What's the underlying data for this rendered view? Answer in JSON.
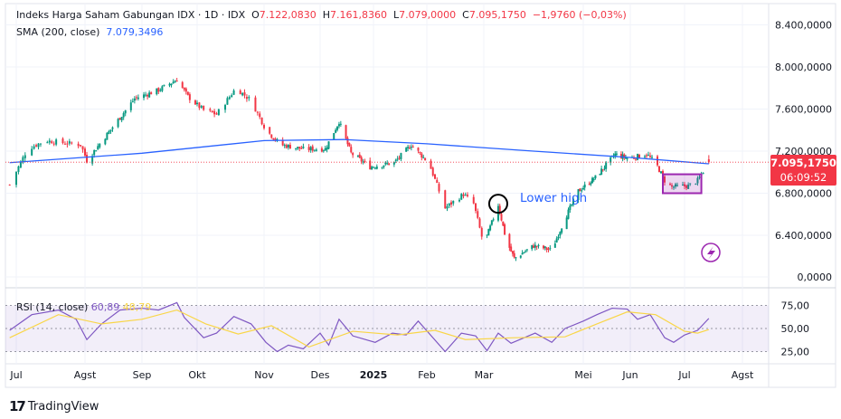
{
  "header": {
    "symbol": "Indeks Harga Saham Gabungan IDX · 1D · IDX",
    "o_label": "O",
    "o": "7.122,0830",
    "h_label": "H",
    "h": "7.161,8360",
    "l_label": "L",
    "l": "7.079,0000",
    "c_label": "C",
    "c": "7.095,1750",
    "change": "−1,9760 (−0,03%)",
    "sma_label": "SMA (200, close)",
    "sma_value": "7.079,3496"
  },
  "price_tag": {
    "price": "7.095,1750",
    "countdown": "06:09:52"
  },
  "annotation": {
    "text": "Lower high"
  },
  "rsi": {
    "label": "RSI (14, close)",
    "value": "60,89",
    "ma_value": "48,79"
  },
  "branding": {
    "name": "TradingView"
  },
  "colors": {
    "up": "#089981",
    "down": "#f23645",
    "sma": "#2962ff",
    "rsi": "#7e57c2",
    "rsi_ma": "#f9d648",
    "box": "#9c27b0"
  },
  "chart_data": [
    {
      "type": "candlestick",
      "title": "Indeks Harga Saham Gabungan IDX · 1D · IDX",
      "y_ticks": [
        "8.400,0000",
        "8.000,0000",
        "7.600,0000",
        "7.200,0000",
        "6.800,0000",
        "6.400,0000",
        "0,0000"
      ],
      "y_tick_values": [
        8400,
        8000,
        7600,
        7200,
        6800,
        6400,
        null
      ],
      "x_ticks": [
        "Jul",
        "Agst",
        "Sep",
        "Okt",
        "Nov",
        "Des",
        "2025",
        "Feb",
        "Mar",
        "Mei",
        "Jun",
        "Jul",
        "Agst"
      ],
      "x_tick_dates": [
        "2024-07-01",
        "2024-08-01",
        "2024-09-01",
        "2024-10-01",
        "2024-11-01",
        "2024-12-01",
        "2025-01-01",
        "2025-02-01",
        "2025-03-01",
        "2025-05-01",
        "2025-06-01",
        "2025-07-01",
        "2025-08-01"
      ],
      "ylim": [
        6150,
        8450
      ],
      "close_path": [
        [
          "2024-06-28",
          6880
        ],
        [
          "2024-07-06",
          7220
        ],
        [
          "2024-07-14",
          7300
        ],
        [
          "2024-07-30",
          7260
        ],
        [
          "2024-08-02",
          7110
        ],
        [
          "2024-08-13",
          7360
        ],
        [
          "2024-08-28",
          7700
        ],
        [
          "2024-09-10",
          7780
        ],
        [
          "2024-09-20",
          7880
        ],
        [
          "2024-09-26",
          7720
        ],
        [
          "2024-10-04",
          7590
        ],
        [
          "2024-10-10",
          7550
        ],
        [
          "2024-10-19",
          7800
        ],
        [
          "2024-10-26",
          7680
        ],
        [
          "2024-11-02",
          7400
        ],
        [
          "2024-11-10",
          7260
        ],
        [
          "2024-11-22",
          7220
        ],
        [
          "2024-12-04",
          7220
        ],
        [
          "2024-12-12",
          7480
        ],
        [
          "2024-12-19",
          7180
        ],
        [
          "2024-12-30",
          7050
        ],
        [
          "2025-01-13",
          7090
        ],
        [
          "2025-01-23",
          7260
        ],
        [
          "2025-02-02",
          7090
        ],
        [
          "2025-02-10",
          6660
        ],
        [
          "2025-02-19",
          6790
        ],
        [
          "2025-02-24",
          6700
        ],
        [
          "2025-03-01",
          6310
        ],
        [
          "2025-03-06",
          6520
        ],
        [
          "2025-03-10",
          6690
        ],
        [
          "2025-03-15",
          6350
        ],
        [
          "2025-03-20",
          6180
        ],
        [
          "2025-04-01",
          6300
        ],
        [
          "2025-04-12",
          6260
        ],
        [
          "2025-04-20",
          6560
        ],
        [
          "2025-04-28",
          6820
        ],
        [
          "2025-05-09",
          6950
        ],
        [
          "2025-05-22",
          7170
        ],
        [
          "2025-05-31",
          7130
        ],
        [
          "2025-06-10",
          7170
        ],
        [
          "2025-06-15",
          7090
        ],
        [
          "2025-06-20",
          6920
        ],
        [
          "2025-06-24",
          6860
        ],
        [
          "2025-07-03",
          6870
        ],
        [
          "2025-07-08",
          6920
        ],
        [
          "2025-07-14",
          7095
        ]
      ],
      "last": {
        "open": 7122.083,
        "high": 7161.836,
        "low": 7079.0,
        "close": 7095.175
      },
      "sma_200": [
        [
          "2024-06-28",
          7090
        ],
        [
          "2024-09-01",
          7180
        ],
        [
          "2024-11-01",
          7300
        ],
        [
          "2024-12-15",
          7310
        ],
        [
          "2025-02-01",
          7270
        ],
        [
          "2025-04-01",
          7200
        ],
        [
          "2025-06-01",
          7140
        ],
        [
          "2025-07-14",
          7079.35
        ]
      ],
      "annotations": [
        {
          "type": "circle",
          "date": "2025-03-10",
          "price": 6700
        },
        {
          "type": "text",
          "text": "Lower high"
        },
        {
          "type": "rectangle",
          "from": "2025-06-19",
          "to": "2025-07-10",
          "price_range": [
            6800,
            6980
          ]
        }
      ]
    },
    {
      "type": "line",
      "title": "RSI (14, close)",
      "y_ticks": [
        "75,00",
        "50,00",
        "25,00"
      ],
      "y_tick_values": [
        75,
        50,
        25
      ],
      "ylim": [
        20,
        80
      ],
      "band": [
        25,
        75
      ],
      "series": [
        {
          "name": "RSI (14, close)",
          "points": [
            [
              "2024-06-28",
              48
            ],
            [
              "2024-07-08",
              65
            ],
            [
              "2024-07-20",
              70
            ],
            [
              "2024-07-28",
              60
            ],
            [
              "2024-08-02",
              38
            ],
            [
              "2024-08-10",
              55
            ],
            [
              "2024-08-20",
              70
            ],
            [
              "2024-09-01",
              72
            ],
            [
              "2024-09-10",
              70
            ],
            [
              "2024-09-20",
              78
            ],
            [
              "2024-09-24",
              62
            ],
            [
              "2024-10-04",
              40
            ],
            [
              "2024-10-10",
              45
            ],
            [
              "2024-10-18",
              63
            ],
            [
              "2024-10-26",
              55
            ],
            [
              "2024-11-02",
              35
            ],
            [
              "2024-11-08",
              25
            ],
            [
              "2024-11-14",
              32
            ],
            [
              "2024-11-22",
              28
            ],
            [
              "2024-12-01",
              45
            ],
            [
              "2024-12-06",
              32
            ],
            [
              "2024-12-12",
              60
            ],
            [
              "2024-12-20",
              42
            ],
            [
              "2025-01-02",
              35
            ],
            [
              "2025-01-12",
              45
            ],
            [
              "2025-01-20",
              43
            ],
            [
              "2025-01-27",
              58
            ],
            [
              "2025-02-02",
              45
            ],
            [
              "2025-02-10",
              25
            ],
            [
              "2025-02-18",
              45
            ],
            [
              "2025-02-25",
              42
            ],
            [
              "2025-03-03",
              26
            ],
            [
              "2025-03-10",
              45
            ],
            [
              "2025-03-18",
              34
            ],
            [
              "2025-04-02",
              45
            ],
            [
              "2025-04-12",
              35
            ],
            [
              "2025-04-20",
              50
            ],
            [
              "2025-05-01",
              58
            ],
            [
              "2025-05-10",
              65
            ],
            [
              "2025-05-20",
              72
            ],
            [
              "2025-05-30",
              71
            ],
            [
              "2025-06-05",
              60
            ],
            [
              "2025-06-12",
              65
            ],
            [
              "2025-06-20",
              40
            ],
            [
              "2025-06-25",
              35
            ],
            [
              "2025-07-01",
              43
            ],
            [
              "2025-07-08",
              48
            ],
            [
              "2025-07-14",
              60.89
            ]
          ]
        },
        {
          "name": "RSI-based MA",
          "points": [
            [
              "2024-06-28",
              40
            ],
            [
              "2024-07-20",
              65
            ],
            [
              "2024-08-10",
              55
            ],
            [
              "2024-09-01",
              60
            ],
            [
              "2024-09-20",
              70
            ],
            [
              "2024-10-05",
              55
            ],
            [
              "2024-10-20",
              44
            ],
            [
              "2024-11-05",
              53
            ],
            [
              "2024-11-25",
              30
            ],
            [
              "2024-12-20",
              47
            ],
            [
              "2025-01-15",
              43
            ],
            [
              "2025-02-05",
              48
            ],
            [
              "2025-02-20",
              38
            ],
            [
              "2025-03-20",
              40
            ],
            [
              "2025-04-20",
              41
            ],
            [
              "2025-05-10",
              55
            ],
            [
              "2025-05-30",
              68
            ],
            [
              "2025-06-15",
              65
            ],
            [
              "2025-07-01",
              47
            ],
            [
              "2025-07-08",
              45
            ],
            [
              "2025-07-14",
              48.79
            ]
          ]
        }
      ]
    }
  ]
}
